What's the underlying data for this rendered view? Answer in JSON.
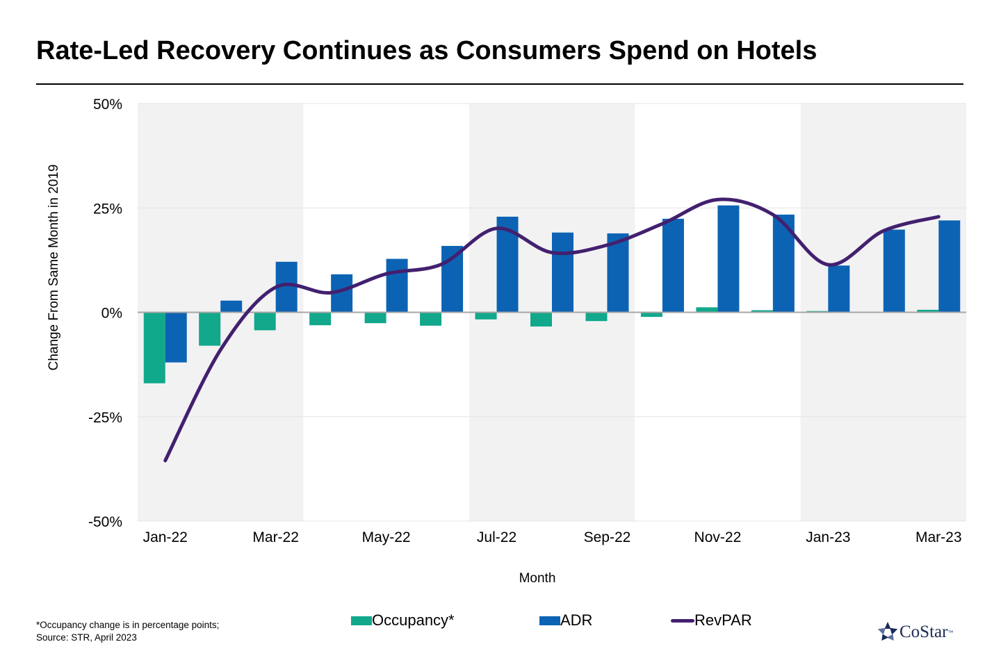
{
  "title": "Rate-Led Recovery Continues as Consumers Spend on Hotels",
  "colors": {
    "occupancy": "#11a88b",
    "adr": "#0d63b3",
    "revpar": "#42206f",
    "band": "#f2f2f2",
    "grid": "#e4e4e4",
    "zero": "#a6a6a6"
  },
  "chart_data": {
    "type": "bar",
    "title": "Rate-Led Recovery Continues as Consumers Spend on Hotels",
    "xlabel": "Month",
    "ylabel": "Change  From Same Month in 2019",
    "ylim": [
      -50,
      50
    ],
    "yticks": [
      50,
      25,
      0,
      -25,
      -50
    ],
    "ytick_labels": [
      "50%",
      "25%",
      "0%",
      "-25%",
      "-50%"
    ],
    "categories": [
      "Jan-22",
      "Feb-22",
      "Mar-22",
      "Apr-22",
      "May-22",
      "Jun-22",
      "Jul-22",
      "Aug-22",
      "Sep-22",
      "Oct-22",
      "Nov-22",
      "Dec-22",
      "Jan-23",
      "Feb-23",
      "Mar-23"
    ],
    "xtick_labels": [
      "Jan-22",
      "Mar-22",
      "May-22",
      "Jul-22",
      "Sep-22",
      "Nov-22",
      "Jan-23",
      "Mar-23"
    ],
    "series": [
      {
        "name": "Occupancy*",
        "kind": "bar",
        "values": [
          -17,
          -8,
          -4.3,
          -3.1,
          -2.6,
          -3.2,
          -1.7,
          -3.4,
          -2.1,
          -1.1,
          1.2,
          0.5,
          0.3,
          0,
          0.6
        ]
      },
      {
        "name": "ADR",
        "kind": "bar",
        "values": [
          -12,
          2.8,
          12.1,
          9.1,
          12.8,
          15.9,
          22.9,
          19.1,
          18.9,
          22.4,
          25.6,
          23.4,
          11.2,
          19.8,
          22
        ]
      },
      {
        "name": "RevPAR",
        "kind": "line",
        "values": [
          -35.5,
          -9,
          6,
          4.7,
          9.2,
          11.5,
          20.1,
          14.3,
          16.1,
          21.2,
          27,
          23.4,
          11.4,
          19.5,
          22.9
        ]
      }
    ],
    "shaded_bands": [
      [
        "Jan-22",
        "Mar-22"
      ],
      [
        "Jul-22",
        "Sep-22"
      ],
      [
        "Jan-23",
        "Mar-23"
      ]
    ]
  },
  "footnote": {
    "line1": "*Occupancy change is in percentage points;",
    "line2": "Source: STR, April 2023"
  },
  "logo": {
    "text": "CoStar",
    "tm": "™"
  }
}
